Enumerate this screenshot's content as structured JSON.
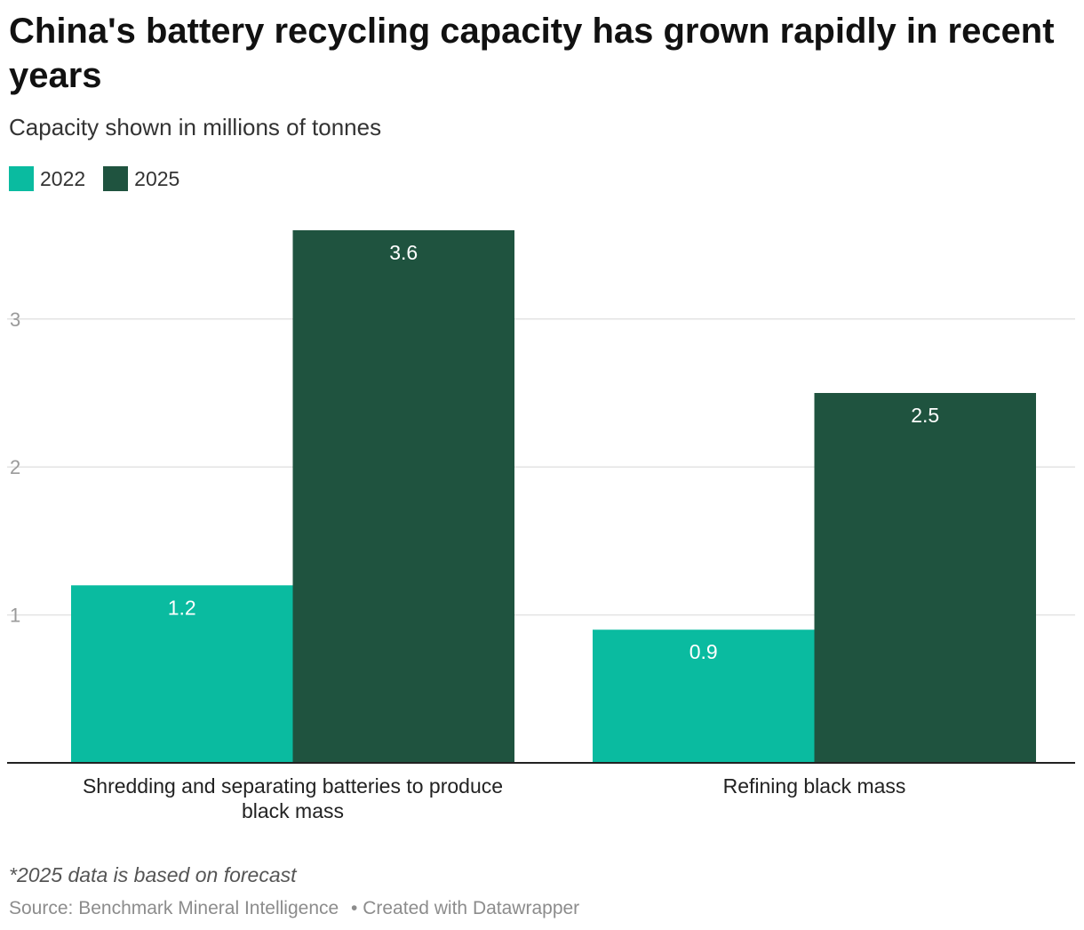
{
  "header": {
    "title": "China's battery recycling capacity has grown rapidly in recent years",
    "subtitle": "Capacity shown in millions of tonnes"
  },
  "colors": {
    "series_2022": "#0abba0",
    "series_2025": "#1f533f",
    "grid": "#e3e3e3",
    "axis": "#222222"
  },
  "chart_data": {
    "type": "bar",
    "categories": [
      "Shredding and separating batteries to produce black mass",
      "Refining black mass"
    ],
    "category_lines": [
      [
        "Shredding and separating batteries to produce",
        "black mass"
      ],
      [
        "Refining black mass"
      ]
    ],
    "series": [
      {
        "name": "2022",
        "values": [
          1.2,
          0.9
        ]
      },
      {
        "name": "2025",
        "values": [
          3.6,
          2.5
        ]
      }
    ],
    "yticks": [
      1,
      2,
      3
    ],
    "ylim": [
      0,
      3.6
    ],
    "grid": true,
    "legend": "top-left"
  },
  "footer": {
    "note": "*2025 data is based on forecast",
    "source": "Source: Benchmark Mineral Intelligence",
    "credit": "• Created with Datawrapper"
  }
}
